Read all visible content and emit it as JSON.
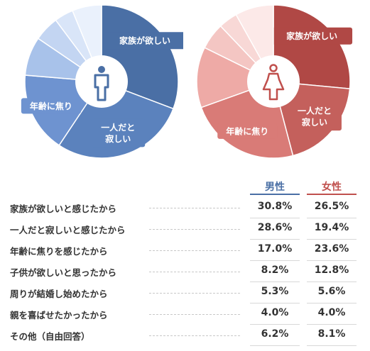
{
  "chart_data": [
    {
      "type": "pie",
      "series_name": "男性",
      "categories": [
        "家族が欲しいと感じたから",
        "一人だと寂しいと感じたから",
        "年齢に焦りを感じたから",
        "子供が欲しいと思ったから",
        "周りが結婚し始めたから",
        "親を喜ばせたかったから",
        "その他（自由回答）"
      ],
      "values": [
        30.8,
        28.6,
        17.0,
        8.2,
        5.3,
        4.0,
        6.2
      ],
      "slice_labels": [
        "家族が欲しい",
        "一人だと\n寂しい",
        "年齢に焦り",
        "",
        "",
        "",
        ""
      ],
      "colors": [
        "#4a6fa5",
        "#5b82bd",
        "#6e93d0",
        "#a8c2ea",
        "#c3d5f2",
        "#d9e5f8",
        "#eaf1fc"
      ],
      "icon": "male-icon"
    },
    {
      "type": "pie",
      "series_name": "女性",
      "categories": [
        "家族が欲しいと感じたから",
        "一人だと寂しいと感じたから",
        "年齢に焦りを感じたから",
        "子供が欲しいと思ったから",
        "周りが結婚し始めたから",
        "親を喜ばせたかったから",
        "その他（自由回答）"
      ],
      "values": [
        26.5,
        19.4,
        23.6,
        12.8,
        5.6,
        4.0,
        8.1
      ],
      "slice_labels": [
        "家族が欲しい",
        "一人だと\n寂しい",
        "年齢に焦り",
        "",
        "",
        "",
        ""
      ],
      "colors": [
        "#b04845",
        "#c4605c",
        "#d97b77",
        "#eeaaa6",
        "#f4c6c3",
        "#f8d8d6",
        "#fce9e8"
      ],
      "icon": "female-icon"
    }
  ],
  "table": {
    "header_male": "男性",
    "header_female": "女性",
    "rows": [
      {
        "label": "家族が欲しいと感じたから",
        "male": "30.8%",
        "female": "26.5%"
      },
      {
        "label": "一人だと寂しいと感じたから",
        "male": "28.6%",
        "female": "19.4%"
      },
      {
        "label": "年齢に焦りを感じたから",
        "male": "17.0%",
        "female": "23.6%"
      },
      {
        "label": "子供が欲しいと思ったから",
        "male": "8.2%",
        "female": "12.8%"
      },
      {
        "label": "周りが結婚し始めたから",
        "male": "5.3%",
        "female": "5.6%"
      },
      {
        "label": "親を喜ばせたかったから",
        "male": "4.0%",
        "female": "4.0%"
      },
      {
        "label": "その他（自由回答）",
        "male": "6.2%",
        "female": "8.1%"
      }
    ]
  },
  "colors": {
    "male": "#4a6fa5",
    "female": "#c0504d"
  }
}
